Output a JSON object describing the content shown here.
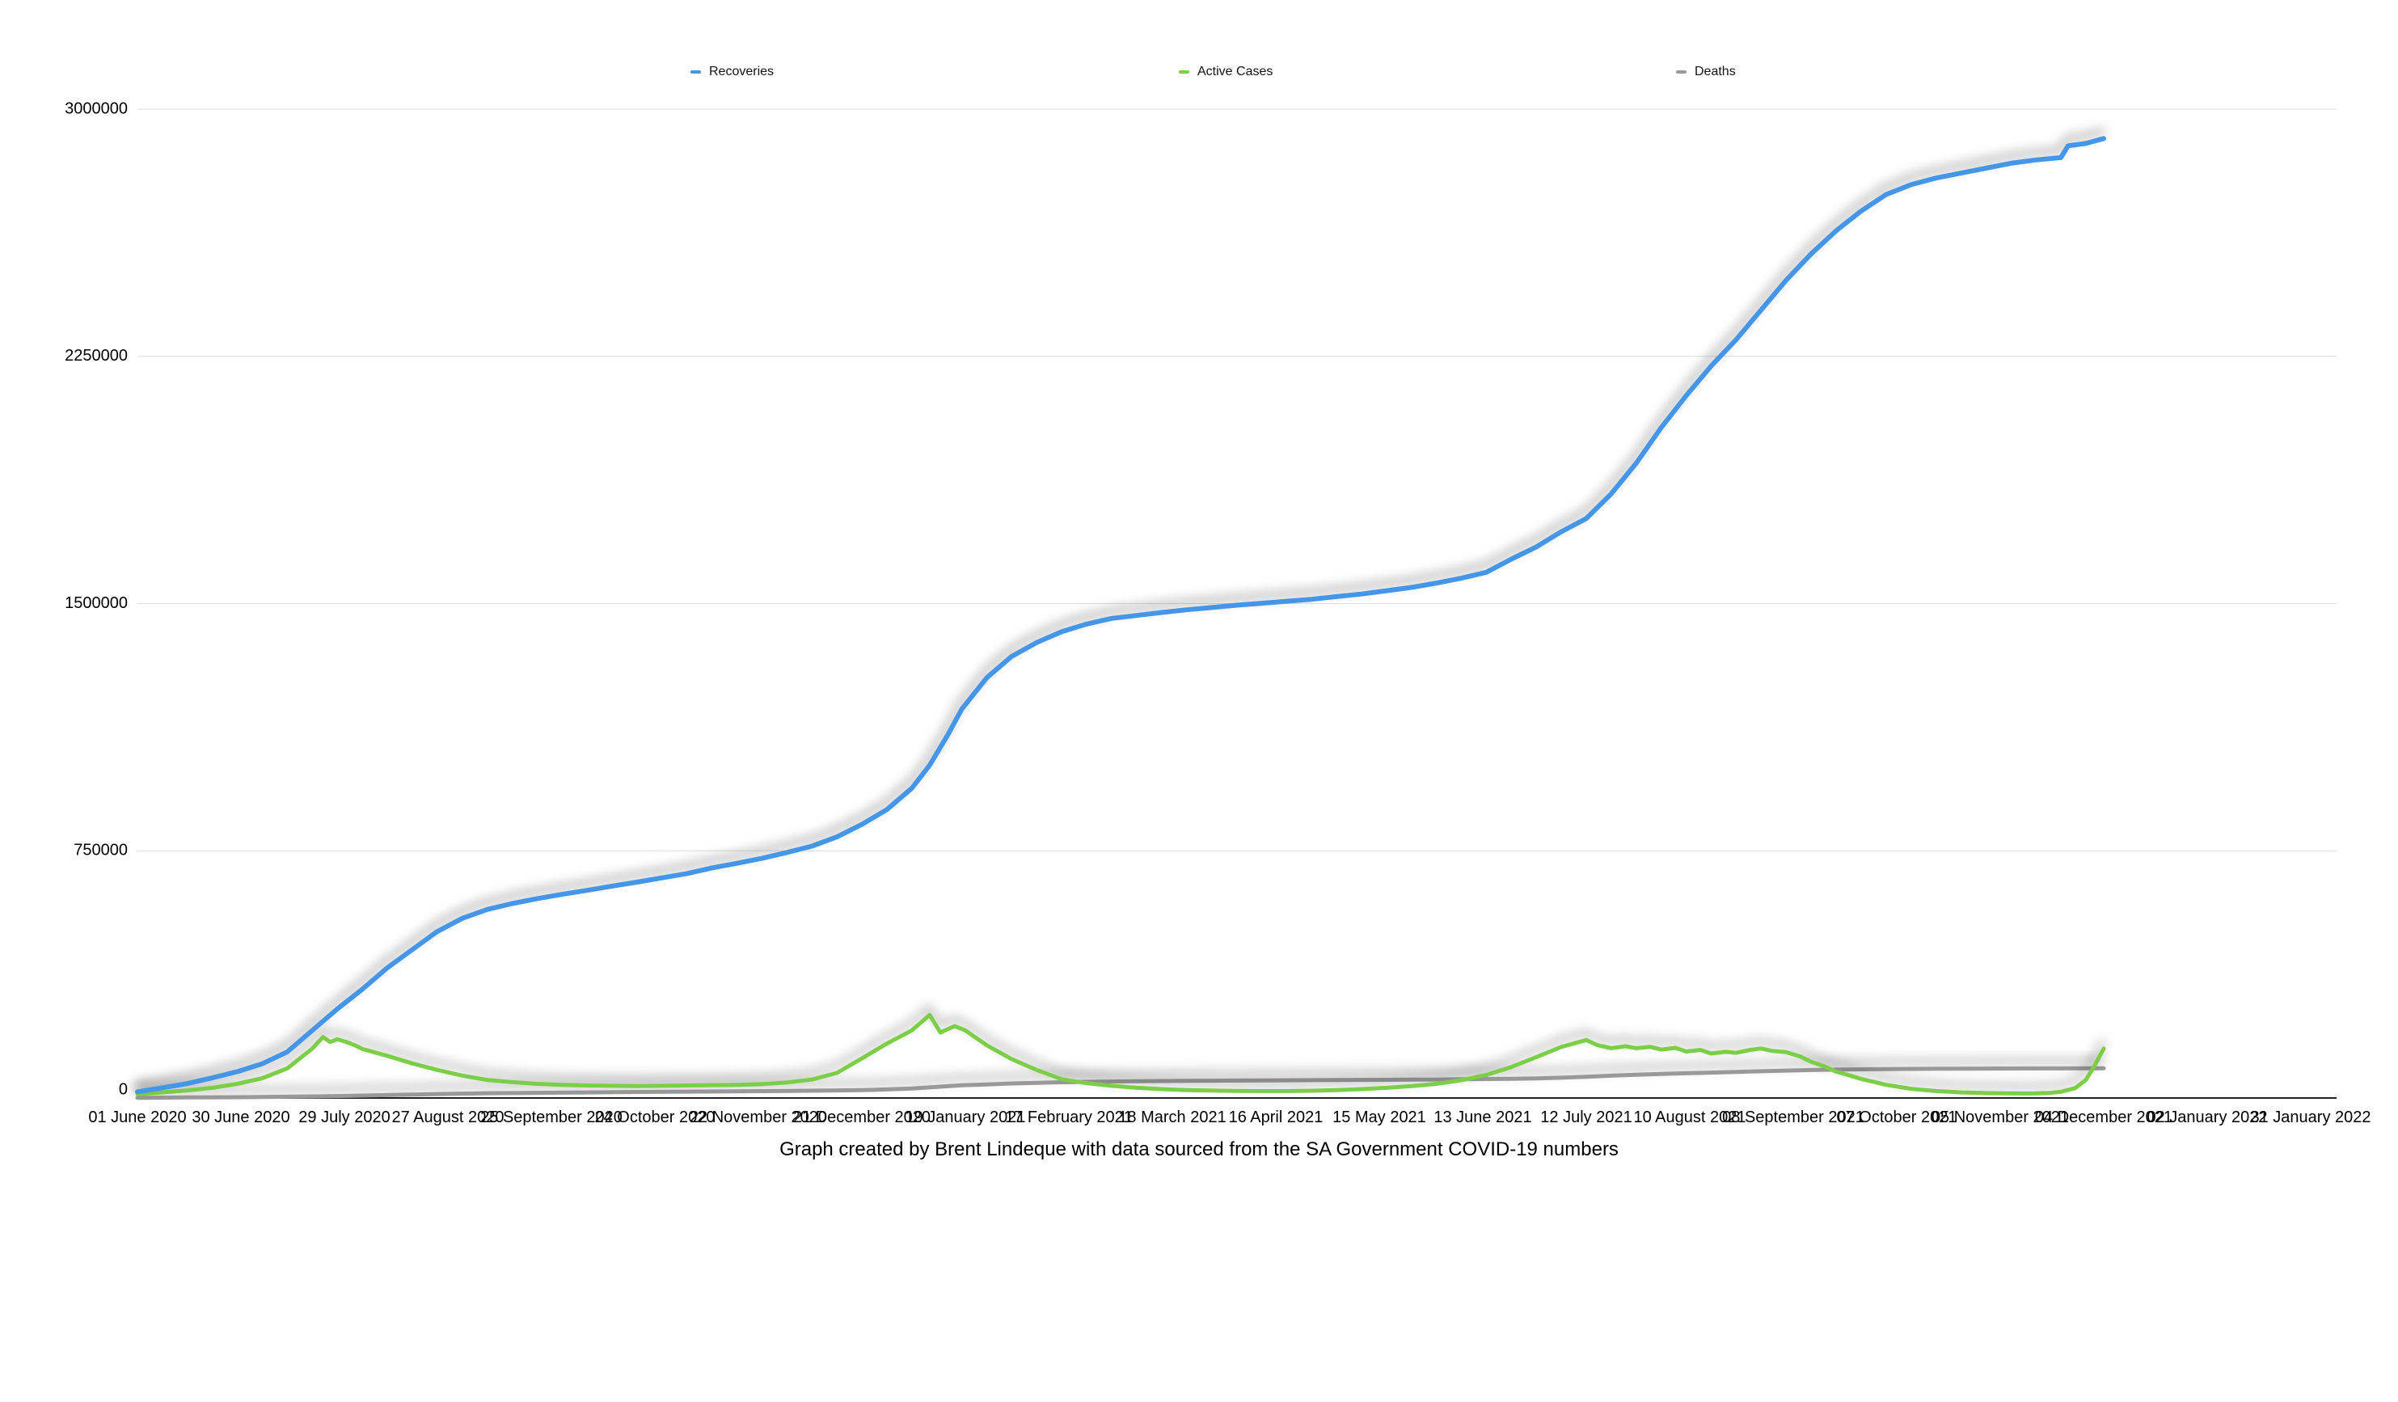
{
  "chart_data": {
    "type": "line",
    "title": "",
    "caption": "Graph created by Brent Lindeque with data sourced from the SA Government COVID-19 numbers",
    "legend_position": "top",
    "grid": true,
    "x_axis": {
      "tick_interval_days": 29,
      "tick_labels": [
        "01 June 2020",
        "30 June 2020",
        "29 July 2020",
        "27 August 2020",
        "25 September 2020",
        "24 October 2020",
        "22 November 2020",
        "21 December 2020",
        "19 January 2021",
        "17 February 2021",
        "18 March 2021",
        "16 April 2021",
        "15 May 2021",
        "13 June 2021",
        "12 July 2021",
        "10 August 2021",
        "08 September 2021",
        "07 October 2021",
        "05 November 2021",
        "04 December 2021",
        "02 January 2022",
        "31 January 2022"
      ]
    },
    "y_axis": {
      "range": [
        0,
        3000000
      ],
      "ticks": [
        0,
        750000,
        1500000,
        2250000,
        3000000
      ],
      "labels": [
        "0",
        "750000",
        "1500000",
        "2250000",
        "3000000"
      ]
    },
    "series": [
      {
        "name": "Recoveries",
        "color": "#4496E8",
        "line_width": 6,
        "points": [
          [
            0,
            19000
          ],
          [
            7,
            31000
          ],
          [
            14,
            44000
          ],
          [
            21,
            61000
          ],
          [
            28,
            80000
          ],
          [
            35,
            104000
          ],
          [
            42,
            140000
          ],
          [
            49,
            205000
          ],
          [
            56,
            270000
          ],
          [
            63,
            330000
          ],
          [
            70,
            395000
          ],
          [
            77,
            450000
          ],
          [
            84,
            505000
          ],
          [
            91,
            545000
          ],
          [
            98,
            572000
          ],
          [
            105,
            590000
          ],
          [
            112,
            605000
          ],
          [
            119,
            618000
          ],
          [
            126,
            630000
          ],
          [
            133,
            643000
          ],
          [
            140,
            655000
          ],
          [
            147,
            668000
          ],
          [
            154,
            681000
          ],
          [
            161,
            698000
          ],
          [
            168,
            712000
          ],
          [
            175,
            727000
          ],
          [
            182,
            745000
          ],
          [
            189,
            764000
          ],
          [
            196,
            792000
          ],
          [
            203,
            830000
          ],
          [
            210,
            875000
          ],
          [
            217,
            940000
          ],
          [
            222,
            1010000
          ],
          [
            227,
            1100000
          ],
          [
            231,
            1180000
          ],
          [
            238,
            1275000
          ],
          [
            245,
            1340000
          ],
          [
            252,
            1382000
          ],
          [
            259,
            1415000
          ],
          [
            266,
            1438000
          ],
          [
            273,
            1455000
          ],
          [
            280,
            1464000
          ],
          [
            287,
            1473000
          ],
          [
            294,
            1481000
          ],
          [
            301,
            1488000
          ],
          [
            308,
            1495000
          ],
          [
            315,
            1501000
          ],
          [
            322,
            1507000
          ],
          [
            329,
            1513000
          ],
          [
            336,
            1521000
          ],
          [
            343,
            1529000
          ],
          [
            350,
            1539000
          ],
          [
            357,
            1549000
          ],
          [
            364,
            1562000
          ],
          [
            371,
            1577000
          ],
          [
            378,
            1595000
          ],
          [
            385,
            1635000
          ],
          [
            392,
            1672000
          ],
          [
            399,
            1718000
          ],
          [
            406,
            1758000
          ],
          [
            413,
            1833000
          ],
          [
            420,
            1926000
          ],
          [
            427,
            2034000
          ],
          [
            434,
            2131000
          ],
          [
            441,
            2221000
          ],
          [
            448,
            2301000
          ],
          [
            455,
            2391000
          ],
          [
            462,
            2481000
          ],
          [
            469,
            2561000
          ],
          [
            476,
            2631000
          ],
          [
            483,
            2691000
          ],
          [
            490,
            2741000
          ],
          [
            497,
            2771000
          ],
          [
            504,
            2791000
          ],
          [
            511,
            2806000
          ],
          [
            518,
            2821000
          ],
          [
            525,
            2836000
          ],
          [
            532,
            2846000
          ],
          [
            539,
            2853000
          ],
          [
            541,
            2889000
          ],
          [
            546,
            2896000
          ],
          [
            551,
            2911000
          ]
        ]
      },
      {
        "name": "Active Cases",
        "color": "#7CCE48",
        "line_width": 5,
        "points": [
          [
            0,
            12000
          ],
          [
            7,
            17000
          ],
          [
            14,
            23000
          ],
          [
            21,
            31000
          ],
          [
            28,
            43000
          ],
          [
            35,
            60000
          ],
          [
            42,
            90000
          ],
          [
            49,
            150000
          ],
          [
            52,
            185000
          ],
          [
            54,
            170000
          ],
          [
            56,
            178000
          ],
          [
            58,
            172000
          ],
          [
            61,
            160000
          ],
          [
            63,
            149000
          ],
          [
            70,
            128000
          ],
          [
            77,
            105000
          ],
          [
            84,
            85000
          ],
          [
            91,
            68000
          ],
          [
            98,
            55000
          ],
          [
            105,
            48000
          ],
          [
            112,
            43000
          ],
          [
            119,
            40000
          ],
          [
            126,
            38000
          ],
          [
            133,
            37000
          ],
          [
            140,
            36000
          ],
          [
            147,
            37000
          ],
          [
            154,
            38000
          ],
          [
            161,
            39000
          ],
          [
            168,
            40000
          ],
          [
            175,
            42000
          ],
          [
            182,
            47000
          ],
          [
            189,
            56000
          ],
          [
            196,
            76000
          ],
          [
            203,
            120000
          ],
          [
            210,
            165000
          ],
          [
            217,
            205000
          ],
          [
            222,
            252000
          ],
          [
            225,
            199000
          ],
          [
            229,
            218000
          ],
          [
            232,
            205000
          ],
          [
            238,
            160000
          ],
          [
            245,
            118000
          ],
          [
            252,
            85000
          ],
          [
            259,
            57000
          ],
          [
            266,
            45000
          ],
          [
            273,
            37000
          ],
          [
            280,
            31000
          ],
          [
            287,
            27000
          ],
          [
            294,
            24000
          ],
          [
            301,
            22500
          ],
          [
            308,
            21500
          ],
          [
            315,
            21000
          ],
          [
            322,
            21000
          ],
          [
            329,
            22000
          ],
          [
            336,
            24000
          ],
          [
            343,
            27000
          ],
          [
            350,
            31000
          ],
          [
            357,
            36000
          ],
          [
            364,
            43000
          ],
          [
            371,
            54000
          ],
          [
            378,
            70000
          ],
          [
            385,
            94000
          ],
          [
            392,
            124000
          ],
          [
            399,
            155000
          ],
          [
            406,
            176000
          ],
          [
            409,
            161000
          ],
          [
            413,
            151000
          ],
          [
            417,
            157000
          ],
          [
            420,
            151000
          ],
          [
            424,
            155000
          ],
          [
            427,
            147000
          ],
          [
            431,
            152000
          ],
          [
            434,
            141000
          ],
          [
            438,
            146000
          ],
          [
            441,
            135000
          ],
          [
            445,
            140000
          ],
          [
            448,
            137000
          ],
          [
            452,
            146000
          ],
          [
            455,
            150000
          ],
          [
            458,
            143000
          ],
          [
            462,
            139000
          ],
          [
            466,
            126000
          ],
          [
            469,
            110000
          ],
          [
            473,
            95000
          ],
          [
            476,
            80000
          ],
          [
            480,
            68000
          ],
          [
            483,
            58000
          ],
          [
            487,
            48000
          ],
          [
            490,
            40000
          ],
          [
            494,
            33000
          ],
          [
            497,
            28000
          ],
          [
            501,
            24000
          ],
          [
            504,
            21000
          ],
          [
            508,
            19000
          ],
          [
            511,
            17000
          ],
          [
            515,
            16000
          ],
          [
            518,
            15000
          ],
          [
            522,
            14500
          ],
          [
            525,
            14000
          ],
          [
            529,
            13800
          ],
          [
            532,
            14000
          ],
          [
            536,
            15500
          ],
          [
            539,
            19000
          ],
          [
            543,
            30000
          ],
          [
            546,
            55000
          ],
          [
            548,
            90000
          ],
          [
            551,
            150000
          ]
        ]
      },
      {
        "name": "Deaths",
        "color": "#999999",
        "line_width": 5,
        "points": [
          [
            0,
            800
          ],
          [
            14,
            1700
          ],
          [
            28,
            2400
          ],
          [
            42,
            4000
          ],
          [
            56,
            5900
          ],
          [
            70,
            8900
          ],
          [
            84,
            12000
          ],
          [
            98,
            14500
          ],
          [
            112,
            15700
          ],
          [
            126,
            17000
          ],
          [
            140,
            18500
          ],
          [
            154,
            19500
          ],
          [
            168,
            20300
          ],
          [
            182,
            21300
          ],
          [
            196,
            23000
          ],
          [
            203,
            24000
          ],
          [
            210,
            26000
          ],
          [
            217,
            29000
          ],
          [
            224,
            33600
          ],
          [
            231,
            38800
          ],
          [
            238,
            41100
          ],
          [
            245,
            44200
          ],
          [
            252,
            46200
          ],
          [
            259,
            47800
          ],
          [
            266,
            49000
          ],
          [
            273,
            50000
          ],
          [
            280,
            50800
          ],
          [
            287,
            51400
          ],
          [
            294,
            52000
          ],
          [
            301,
            52600
          ],
          [
            308,
            53000
          ],
          [
            315,
            53400
          ],
          [
            322,
            53800
          ],
          [
            329,
            54200
          ],
          [
            336,
            54500
          ],
          [
            343,
            54900
          ],
          [
            350,
            55200
          ],
          [
            357,
            55600
          ],
          [
            364,
            56000
          ],
          [
            371,
            56800
          ],
          [
            378,
            57600
          ],
          [
            385,
            58400
          ],
          [
            392,
            59600
          ],
          [
            399,
            61500
          ],
          [
            406,
            64500
          ],
          [
            413,
            67600
          ],
          [
            420,
            70400
          ],
          [
            427,
            72800
          ],
          [
            434,
            75000
          ],
          [
            441,
            77000
          ],
          [
            448,
            79000
          ],
          [
            455,
            81200
          ],
          [
            462,
            83200
          ],
          [
            469,
            84800
          ],
          [
            476,
            86000
          ],
          [
            483,
            87000
          ],
          [
            490,
            87800
          ],
          [
            497,
            88300
          ],
          [
            504,
            88700
          ],
          [
            511,
            89000
          ],
          [
            518,
            89300
          ],
          [
            525,
            89500
          ],
          [
            532,
            89700
          ],
          [
            539,
            89900
          ],
          [
            546,
            90000
          ],
          [
            551,
            90100
          ]
        ]
      }
    ]
  }
}
